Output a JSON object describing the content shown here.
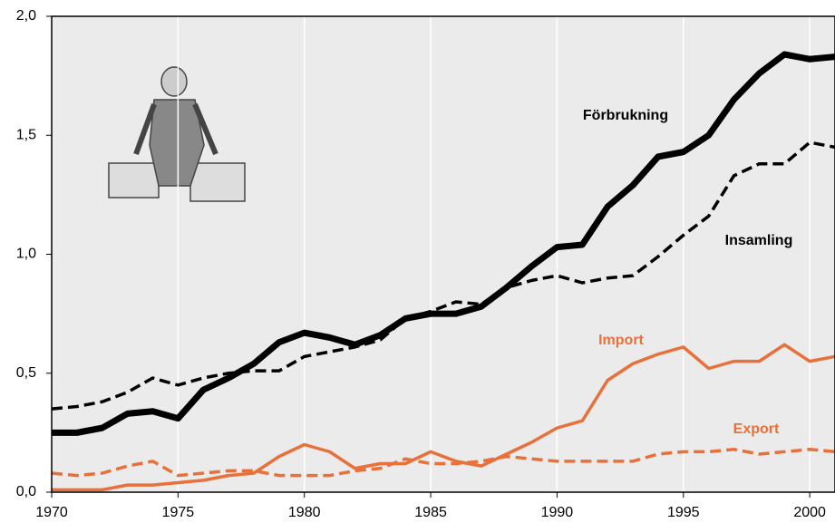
{
  "chart_data": {
    "type": "line",
    "x": [
      1970,
      1971,
      1972,
      1973,
      1974,
      1975,
      1976,
      1977,
      1978,
      1979,
      1980,
      1981,
      1982,
      1983,
      1984,
      1985,
      1986,
      1987,
      1988,
      1989,
      1990,
      1991,
      1992,
      1993,
      1994,
      1995,
      1996,
      1997,
      1998,
      1999,
      2000,
      2001
    ],
    "series": [
      {
        "name": "Förbrukning",
        "color": "#000000",
        "line_style": "solid",
        "values": [
          0.25,
          0.25,
          0.27,
          0.33,
          0.34,
          0.31,
          0.43,
          0.48,
          0.54,
          0.63,
          0.67,
          0.65,
          0.62,
          0.66,
          0.73,
          0.75,
          0.75,
          0.78,
          0.86,
          0.95,
          1.03,
          1.04,
          1.2,
          1.29,
          1.41,
          1.43,
          1.5,
          1.65,
          1.76,
          1.84,
          1.82,
          1.83
        ]
      },
      {
        "name": "Insamling",
        "color": "#000000",
        "line_style": "dashed",
        "values": [
          0.35,
          0.36,
          0.38,
          0.42,
          0.48,
          0.45,
          0.48,
          0.5,
          0.51,
          0.51,
          0.57,
          0.59,
          0.61,
          0.64,
          0.73,
          0.76,
          0.8,
          0.79,
          0.86,
          0.89,
          0.91,
          0.88,
          0.9,
          0.91,
          0.99,
          1.08,
          1.16,
          1.33,
          1.38,
          1.38,
          1.47,
          1.45
        ]
      },
      {
        "name": "Import",
        "color": "#e8703a",
        "line_style": "solid",
        "values": [
          0.01,
          0.01,
          0.01,
          0.03,
          0.03,
          0.04,
          0.05,
          0.07,
          0.08,
          0.15,
          0.2,
          0.17,
          0.1,
          0.12,
          0.12,
          0.17,
          0.13,
          0.11,
          0.16,
          0.21,
          0.27,
          0.3,
          0.47,
          0.54,
          0.58,
          0.61,
          0.52,
          0.55,
          0.55,
          0.62,
          0.55,
          0.57
        ]
      },
      {
        "name": "Export",
        "color": "#e8703a",
        "line_style": "dashed",
        "values": [
          0.08,
          0.07,
          0.08,
          0.11,
          0.13,
          0.07,
          0.08,
          0.09,
          0.09,
          0.07,
          0.07,
          0.07,
          0.09,
          0.1,
          0.14,
          0.12,
          0.12,
          0.13,
          0.15,
          0.14,
          0.13,
          0.13,
          0.13,
          0.13,
          0.16,
          0.17,
          0.17,
          0.18,
          0.16,
          0.17,
          0.18,
          0.17
        ]
      }
    ],
    "xlim": [
      1970,
      2001
    ],
    "xticks": [
      1970,
      1975,
      1980,
      1985,
      1990,
      1995,
      2000
    ],
    "ylim": [
      0,
      2
    ],
    "yticks": [
      {
        "value": 0,
        "label": "0,0"
      },
      {
        "value": 0.5,
        "label": "0,5"
      },
      {
        "value": 1,
        "label": "1,0"
      },
      {
        "value": 1.5,
        "label": "1,5"
      },
      {
        "value": 2,
        "label": "2,0"
      }
    ],
    "grid": "x",
    "background": "#ebebeb"
  }
}
